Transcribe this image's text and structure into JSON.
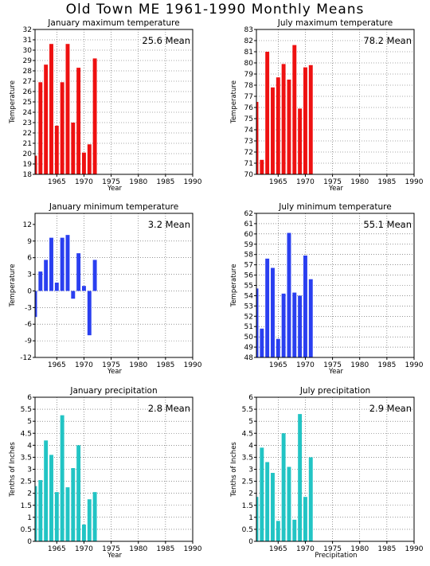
{
  "title": "Old Town ME  1961-1990 Monthly Means",
  "chart_data": [
    {
      "type": "bar",
      "title": "January maximum temperature",
      "mean_label": "25.6 Mean",
      "xlabel": "Year",
      "ylabel": "Temperature",
      "color": "#ee1111",
      "xlim": [
        1961,
        1990
      ],
      "ylim": [
        18,
        32
      ],
      "yticks": [
        18,
        19,
        20,
        21,
        22,
        23,
        24,
        25,
        26,
        27,
        28,
        29,
        30,
        31,
        32
      ],
      "xticks": [
        1965,
        1970,
        1975,
        1980,
        1985,
        1990
      ],
      "x": [
        1961,
        1962,
        1963,
        1964,
        1965,
        1966,
        1967,
        1968,
        1969,
        1970,
        1971,
        1972
      ],
      "values": [
        19.8,
        26.9,
        28.6,
        30.6,
        22.7,
        26.9,
        30.6,
        23.0,
        28.3,
        20.1,
        20.9,
        29.2
      ]
    },
    {
      "type": "bar",
      "title": "July maximum temperature",
      "mean_label": "78.2 Mean",
      "xlabel": "Year",
      "ylabel": "Temperature",
      "color": "#ee1111",
      "xlim": [
        1961,
        1990
      ],
      "ylim": [
        70,
        83
      ],
      "yticks": [
        70,
        71,
        72,
        73,
        74,
        75,
        76,
        77,
        78,
        79,
        80,
        81,
        82,
        83
      ],
      "xticks": [
        1965,
        1970,
        1975,
        1980,
        1985,
        1990
      ],
      "x": [
        1961,
        1962,
        1963,
        1964,
        1965,
        1966,
        1967,
        1968,
        1969,
        1970,
        1971
      ],
      "values": [
        76.5,
        71.3,
        81.0,
        77.8,
        78.7,
        79.9,
        78.5,
        81.6,
        75.9,
        79.6,
        79.8
      ]
    },
    {
      "type": "bar",
      "title": "January minimum temperature",
      "mean_label": "3.2 Mean",
      "xlabel": "Year",
      "ylabel": "Temperature",
      "color": "#2a3ff0",
      "xlim": [
        1961,
        1990
      ],
      "ylim": [
        -12,
        14
      ],
      "yticks": [
        -12,
        -9,
        -6,
        -3,
        0,
        3,
        6,
        9,
        12
      ],
      "xticks": [
        1965,
        1970,
        1975,
        1980,
        1985,
        1990
      ],
      "x": [
        1961,
        1962,
        1963,
        1964,
        1965,
        1966,
        1967,
        1968,
        1969,
        1970,
        1971,
        1972
      ],
      "values": [
        -4.7,
        3.5,
        5.6,
        9.6,
        1.5,
        9.6,
        10.1,
        -1.4,
        6.8,
        0.9,
        -8.0,
        5.6
      ]
    },
    {
      "type": "bar",
      "title": "July minimum temperature",
      "mean_label": "55.1 Mean",
      "xlabel": "Year",
      "ylabel": "Temperature",
      "color": "#2a3ff0",
      "xlim": [
        1961,
        1990
      ],
      "ylim": [
        48,
        62
      ],
      "yticks": [
        48,
        49,
        50,
        51,
        52,
        53,
        54,
        55,
        56,
        57,
        58,
        59,
        60,
        61,
        62
      ],
      "xticks": [
        1965,
        1970,
        1975,
        1980,
        1985,
        1990
      ],
      "x": [
        1961,
        1962,
        1963,
        1964,
        1965,
        1966,
        1967,
        1968,
        1969,
        1970,
        1971
      ],
      "values": [
        54.7,
        50.8,
        57.6,
        56.7,
        49.8,
        54.2,
        60.1,
        54.3,
        54.0,
        57.9,
        55.6
      ]
    },
    {
      "type": "bar",
      "title": "January precipitation",
      "mean_label": "2.8 Mean",
      "xlabel": "Year",
      "ylabel": "Tenths of Inches",
      "color": "#22c4c4",
      "xlim": [
        1961,
        1990
      ],
      "ylim": [
        0,
        6
      ],
      "yticks": [
        0,
        0.5,
        1,
        1.5,
        2,
        2.5,
        3,
        3.5,
        4,
        4.5,
        5,
        5.5,
        6
      ],
      "xticks": [
        1965,
        1970,
        1975,
        1980,
        1985,
        1990
      ],
      "x": [
        1961,
        1962,
        1963,
        1964,
        1965,
        1966,
        1967,
        1968,
        1969,
        1970,
        1971,
        1972
      ],
      "values": [
        2.3,
        2.55,
        4.2,
        3.6,
        2.05,
        5.25,
        2.25,
        3.05,
        4.0,
        0.7,
        1.75,
        2.05
      ]
    },
    {
      "type": "bar",
      "title": "July precipitation",
      "mean_label": "2.9 Mean",
      "xlabel": "Precipitation",
      "ylabel": "Tenths of Inches",
      "color": "#22c4c4",
      "xlim": [
        1961,
        1990
      ],
      "ylim": [
        0,
        6
      ],
      "yticks": [
        0,
        0.5,
        1,
        1.5,
        2,
        2.5,
        3,
        3.5,
        4,
        4.5,
        5,
        5.5,
        6
      ],
      "xticks": [
        1965,
        1970,
        1975,
        1980,
        1985,
        1990
      ],
      "x": [
        1961,
        1962,
        1963,
        1964,
        1965,
        1966,
        1967,
        1968,
        1969,
        1970,
        1971
      ],
      "values": [
        1.85,
        3.9,
        3.3,
        2.85,
        0.85,
        4.5,
        3.1,
        0.9,
        5.3,
        1.85,
        3.5
      ]
    }
  ]
}
